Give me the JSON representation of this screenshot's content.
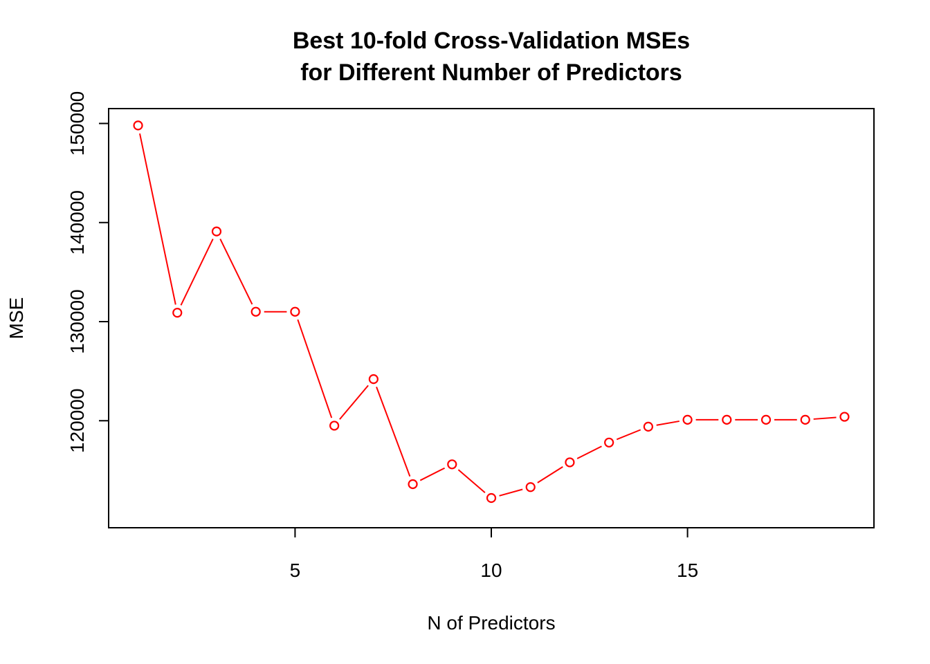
{
  "chart_data": {
    "type": "line",
    "title": [
      "Best 10-fold Cross-Validation MSEs",
      "for Different Number of Predictors"
    ],
    "xlabel": "N of Predictors",
    "ylabel": "MSE",
    "x": [
      1,
      2,
      3,
      4,
      5,
      6,
      7,
      8,
      9,
      10,
      11,
      12,
      13,
      14,
      15,
      16,
      17,
      18,
      19
    ],
    "series": [
      {
        "name": "MSE",
        "values": [
          149800,
          130900,
          139100,
          131000,
          131000,
          119500,
          124200,
          113600,
          115600,
          112200,
          113300,
          115800,
          117800,
          119400,
          120100,
          120100,
          120100,
          120100,
          120400
        ]
      }
    ],
    "xlim": [
      0.25,
      19.75
    ],
    "ylim": [
      109200,
      151500
    ],
    "xticks": [
      5,
      10,
      15
    ],
    "yticks": [
      120000,
      130000,
      140000,
      150000
    ],
    "line_color": "#ff0000",
    "grid": false
  }
}
